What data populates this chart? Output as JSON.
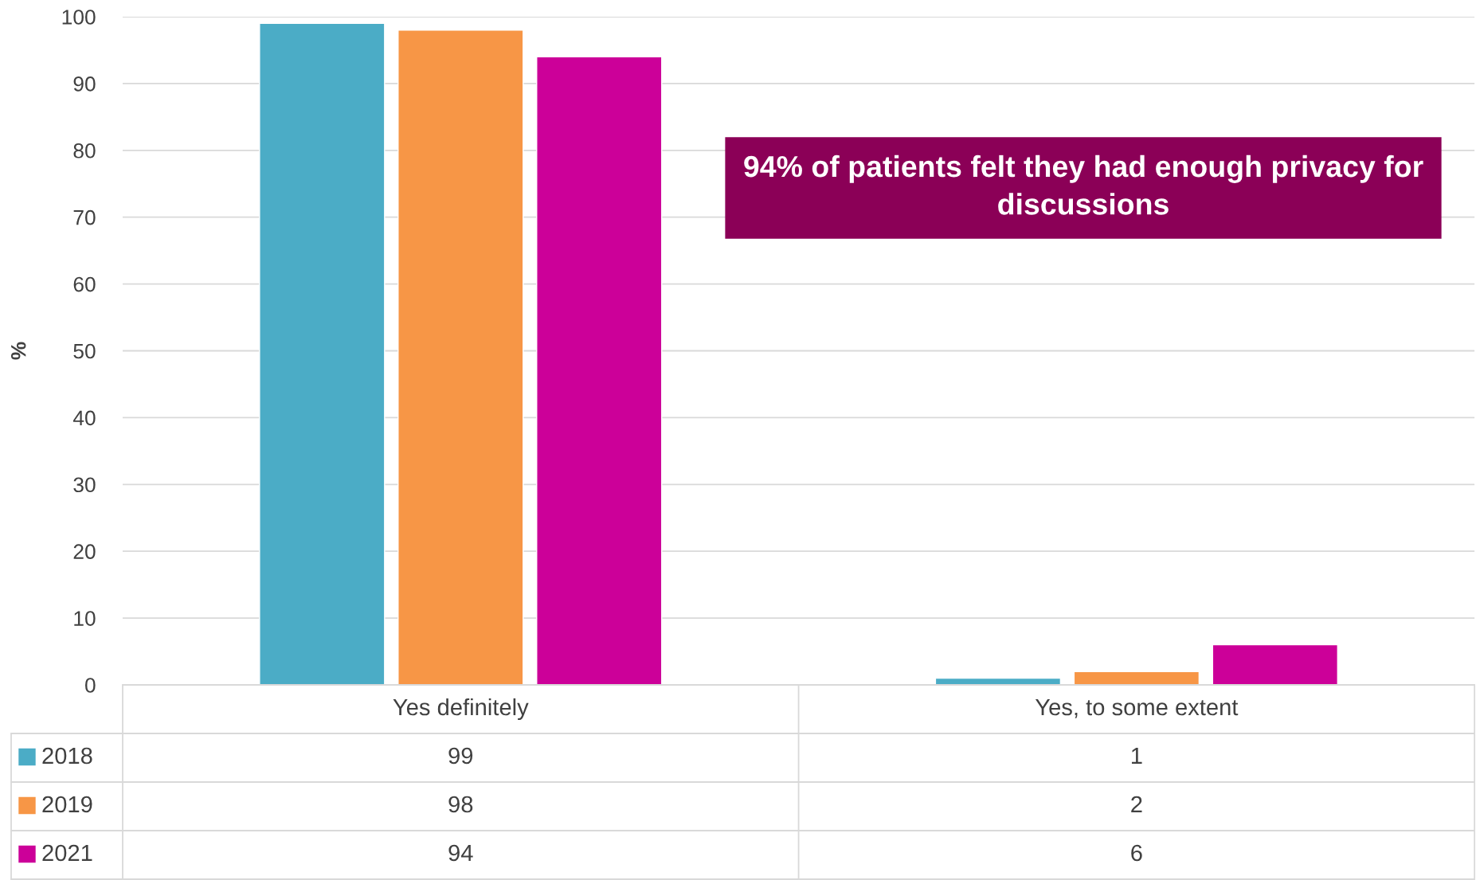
{
  "chart_data": {
    "type": "bar",
    "ylabel": "%",
    "categories": [
      "Yes definitely",
      "Yes, to some extent"
    ],
    "series": [
      {
        "name": "2018",
        "color": "#4bacc6",
        "values": [
          99,
          1
        ]
      },
      {
        "name": "2019",
        "color": "#f79646",
        "values": [
          98,
          2
        ]
      },
      {
        "name": "2021",
        "color": "#cc0099",
        "values": [
          94,
          6
        ]
      }
    ],
    "ylim": [
      0,
      100
    ],
    "yticks": [
      0,
      10,
      20,
      30,
      40,
      50,
      60,
      70,
      80,
      90,
      100
    ],
    "grid": "y",
    "legend": "bottom",
    "data_labels": true,
    "annotations": [
      "94% of patients felt they had enough privacy for discussions"
    ]
  }
}
